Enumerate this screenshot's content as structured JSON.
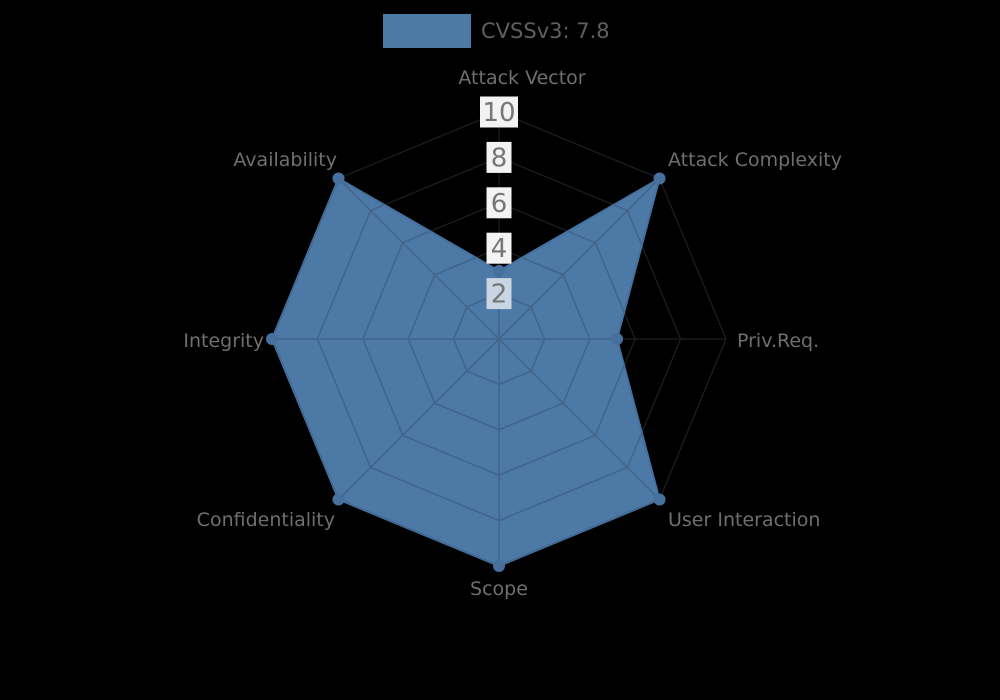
{
  "chart_data": {
    "type": "radar",
    "title": "",
    "legend_label": "CVSSv3: 7.8",
    "legend_position": "top-center",
    "categories": [
      "Attack Vector",
      "Attack Complexity",
      "Priv.Req.",
      "User Interaction",
      "Scope",
      "Confidentiality",
      "Integrity",
      "Availability"
    ],
    "series": [
      {
        "name": "CVSSv3: 7.8",
        "values": [
          3.0,
          10,
          5.2,
          10,
          10,
          10,
          10,
          10
        ]
      }
    ],
    "radial_axis": {
      "min": 0,
      "max": 10,
      "ticks": [
        2,
        4,
        6,
        8,
        10
      ],
      "tick_labels": [
        "2",
        "4",
        "6",
        "8",
        "10"
      ],
      "ticks_shown_on": "top axis"
    },
    "grid": {
      "shape": "polygon-web",
      "rings": 5,
      "spokes": 8
    },
    "colors": {
      "fill": "#4d79a7",
      "edge": "#46719e",
      "marker": "#46719e",
      "grid_over_fill": "#42658b",
      "grid_over_background": "#1c1f22",
      "axis_label_text": "#6f6f6f",
      "tick_text": "#767676",
      "tick_box": "#f3f3f3",
      "tick_box_over_fill": "#c9d5e2",
      "legend_text": "#5d5f61",
      "background": "#000000"
    }
  }
}
